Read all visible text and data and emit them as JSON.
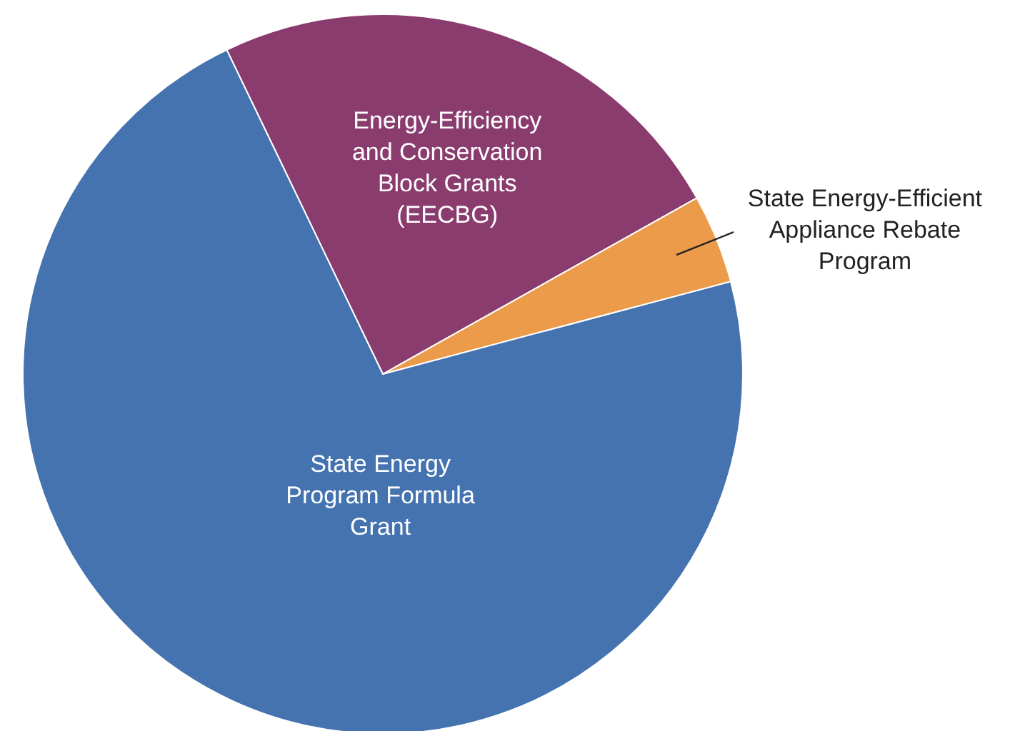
{
  "chart_data": {
    "type": "pie",
    "categories": [
      "Energy-Efficiency and Conservation Block Grants (EECBG)",
      "State Energy-Efficient Appliance Rebate Program",
      "State Energy Program Formula Grant"
    ],
    "values": [
      24,
      4,
      72
    ],
    "colors": [
      "#8b3c6e",
      "#eb9b4a",
      "#4473b0"
    ]
  }
}
